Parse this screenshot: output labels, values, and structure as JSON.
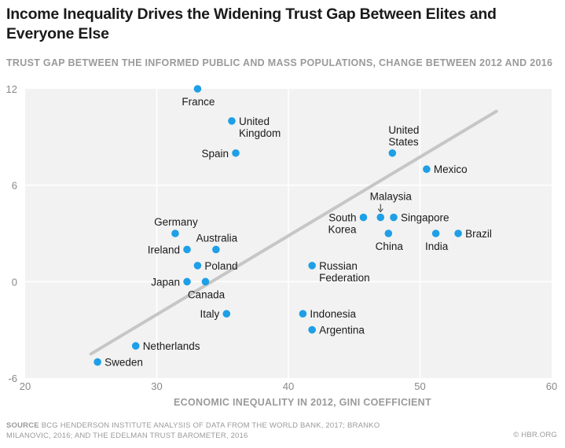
{
  "header": {
    "title": "Income Inequality Drives the Widening Trust Gap Between Elites and Everyone Else",
    "subtitle": "TRUST GAP BETWEEN THE INFORMED PUBLIC AND MASS POPULATIONS, CHANGE BETWEEN 2012 AND 2016"
  },
  "footer": {
    "source_key": "SOURCE",
    "source_text": "BCG HENDERSON INSTITUTE ANALYSIS OF DATA FROM THE WORLD BANK, 2017; BRANKO MILANOVIC, 2016; AND THE EDELMAN TRUST BAROMETER, 2016",
    "credit": "© HBR.ORG"
  },
  "colors": {
    "point": "#1e9fe6",
    "trend": "#c6c6c6",
    "plot_bg": "#f2f2f2",
    "grid": "#ffffff"
  },
  "chart_data": {
    "type": "scatter",
    "title": "Income Inequality Drives the Widening Trust Gap Between Elites and Everyone Else",
    "subtitle": "TRUST GAP BETWEEN THE INFORMED PUBLIC AND MASS POPULATIONS, CHANGE BETWEEN 2012 AND 2016",
    "xlabel": "ECONOMIC INEQUALITY IN 2012, GINI COEFFICIENT",
    "ylabel": "",
    "xlim": [
      20,
      60
    ],
    "ylim": [
      -6,
      12
    ],
    "xticks": [
      20,
      30,
      40,
      50,
      60
    ],
    "yticks": [
      -6,
      0,
      6,
      12
    ],
    "grid": true,
    "trend_line": {
      "x": [
        25,
        55.8
      ],
      "y": [
        -4.5,
        10.6
      ]
    },
    "points": [
      {
        "label": "France",
        "x": 33.1,
        "y": 12.0,
        "label_pos": "below"
      },
      {
        "label": "United Kingdom",
        "x": 35.7,
        "y": 10.0,
        "label_pos": "right-two-line"
      },
      {
        "label": "Spain",
        "x": 36.0,
        "y": 8.0,
        "label_pos": "left"
      },
      {
        "label": "United States",
        "x": 47.9,
        "y": 8.0,
        "label_pos": "above-two-line"
      },
      {
        "label": "Mexico",
        "x": 50.5,
        "y": 7.0,
        "label_pos": "right"
      },
      {
        "label": "Malaysia",
        "x": 47.0,
        "y": 4.0,
        "label_pos": "above-arrow"
      },
      {
        "label": "South Korea",
        "x": 45.7,
        "y": 4.0,
        "label_pos": "left-two-line"
      },
      {
        "label": "Singapore",
        "x": 48.0,
        "y": 4.0,
        "label_pos": "right"
      },
      {
        "label": "China",
        "x": 47.6,
        "y": 3.0,
        "label_pos": "below"
      },
      {
        "label": "India",
        "x": 51.2,
        "y": 3.0,
        "label_pos": "below"
      },
      {
        "label": "Brazil",
        "x": 52.9,
        "y": 3.0,
        "label_pos": "right"
      },
      {
        "label": "Germany",
        "x": 31.4,
        "y": 3.0,
        "label_pos": "above"
      },
      {
        "label": "Australia",
        "x": 34.5,
        "y": 2.0,
        "label_pos": "above"
      },
      {
        "label": "Ireland",
        "x": 32.3,
        "y": 2.0,
        "label_pos": "left"
      },
      {
        "label": "Poland",
        "x": 33.1,
        "y": 1.0,
        "label_pos": "right"
      },
      {
        "label": "Russian Federation",
        "x": 41.8,
        "y": 1.0,
        "label_pos": "right-two-line"
      },
      {
        "label": "Japan",
        "x": 32.3,
        "y": 0.0,
        "label_pos": "left"
      },
      {
        "label": "Canada",
        "x": 33.7,
        "y": 0.0,
        "label_pos": "below"
      },
      {
        "label": "Italy",
        "x": 35.3,
        "y": -2.0,
        "label_pos": "left"
      },
      {
        "label": "Indonesia",
        "x": 41.1,
        "y": -2.0,
        "label_pos": "right"
      },
      {
        "label": "Argentina",
        "x": 41.8,
        "y": -3.0,
        "label_pos": "right"
      },
      {
        "label": "Netherlands",
        "x": 28.4,
        "y": -4.0,
        "label_pos": "right"
      },
      {
        "label": "Sweden",
        "x": 25.5,
        "y": -5.0,
        "label_pos": "right"
      }
    ]
  }
}
